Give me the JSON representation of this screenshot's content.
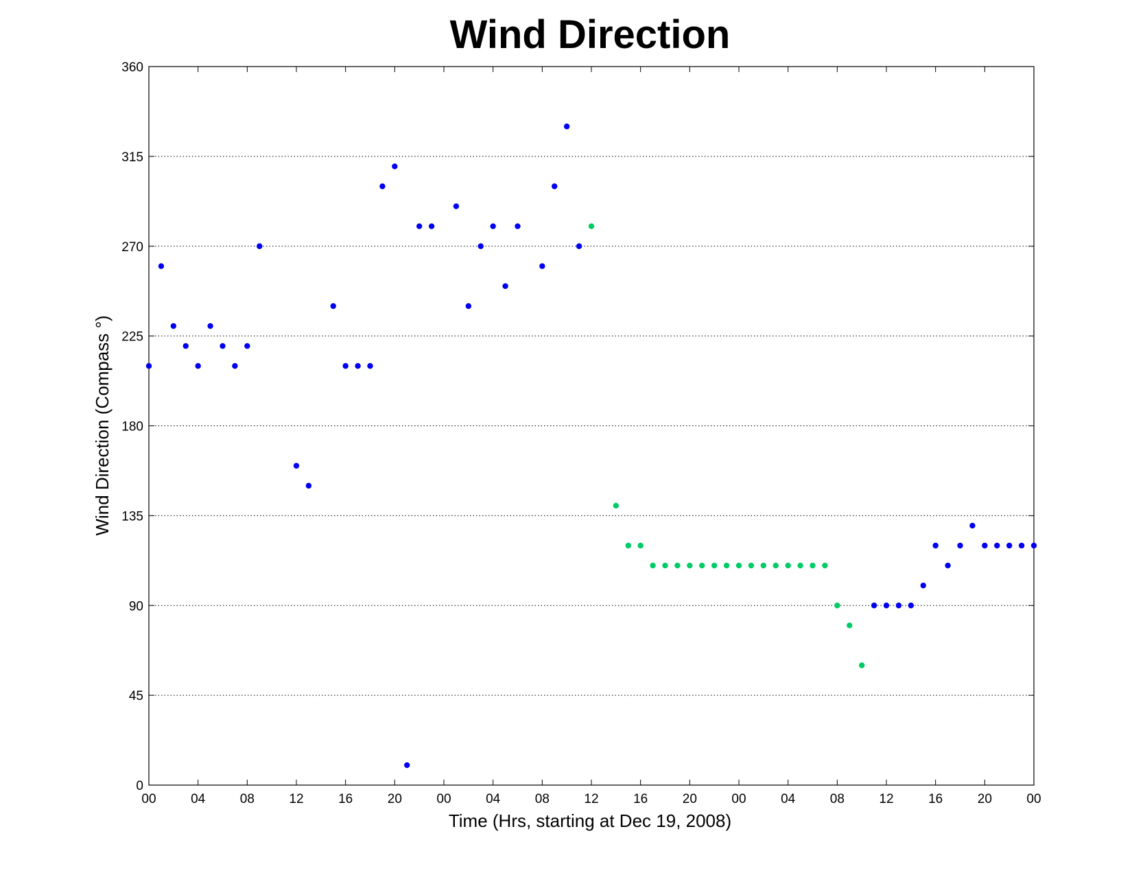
{
  "chart_data": {
    "type": "scatter",
    "title": "Wind Direction",
    "xlabel": "Time (Hrs, starting at Dec 19, 2008)",
    "ylabel": "Wind Direction (Compass  °)",
    "ylim": [
      0,
      360
    ],
    "xlim": [
      "2008-12-19 00:00",
      "2008-12-22 00:00"
    ],
    "yticks": [
      0,
      45,
      90,
      135,
      180,
      225,
      270,
      315,
      360
    ],
    "xticks": [
      {
        "time": "2008-12-19 00:00",
        "label": "00"
      },
      {
        "time": "2008-12-19 04:00",
        "label": "04"
      },
      {
        "time": "2008-12-19 08:00",
        "label": "08"
      },
      {
        "time": "2008-12-19 12:00",
        "label": "12"
      },
      {
        "time": "2008-12-19 16:00",
        "label": "16"
      },
      {
        "time": "2008-12-19 20:00",
        "label": "20"
      },
      {
        "time": "2008-12-20 00:00",
        "label": "00"
      },
      {
        "time": "2008-12-20 04:00",
        "label": "04"
      },
      {
        "time": "2008-12-20 08:00",
        "label": "08"
      },
      {
        "time": "2008-12-20 12:00",
        "label": "12"
      },
      {
        "time": "2008-12-20 16:00",
        "label": "16"
      },
      {
        "time": "2008-12-20 20:00",
        "label": "20"
      },
      {
        "time": "2008-12-21 00:00",
        "label": "00"
      },
      {
        "time": "2008-12-21 04:00",
        "label": "04"
      },
      {
        "time": "2008-12-21 08:00",
        "label": "08"
      },
      {
        "time": "2008-12-21 12:00",
        "label": "12"
      },
      {
        "time": "2008-12-21 16:00",
        "label": "16"
      },
      {
        "time": "2008-12-21 20:00",
        "label": "20"
      },
      {
        "time": "2008-12-22 00:00",
        "label": "00"
      }
    ],
    "grid": "horizontal",
    "series": [
      {
        "color": "#0000ee",
        "points": [
          [
            "2008-12-19 00:00",
            210
          ],
          [
            "2008-12-19 01:00",
            260
          ],
          [
            "2008-12-19 02:00",
            230
          ],
          [
            "2008-12-19 03:00",
            220
          ],
          [
            "2008-12-19 04:00",
            210
          ],
          [
            "2008-12-19 05:00",
            230
          ],
          [
            "2008-12-19 06:00",
            220
          ],
          [
            "2008-12-19 07:00",
            210
          ],
          [
            "2008-12-19 08:00",
            220
          ],
          [
            "2008-12-19 09:00",
            270
          ],
          [
            "2008-12-19 12:00",
            160
          ],
          [
            "2008-12-19 13:00",
            150
          ],
          [
            "2008-12-19 15:00",
            240
          ],
          [
            "2008-12-19 16:00",
            210
          ],
          [
            "2008-12-19 17:00",
            210
          ],
          [
            "2008-12-19 18:00",
            210
          ],
          [
            "2008-12-19 19:00",
            300
          ],
          [
            "2008-12-19 20:00",
            310
          ],
          [
            "2008-12-19 21:00",
            10
          ],
          [
            "2008-12-19 22:00",
            280
          ],
          [
            "2008-12-19 23:00",
            280
          ],
          [
            "2008-12-20 01:00",
            290
          ],
          [
            "2008-12-20 02:00",
            240
          ],
          [
            "2008-12-20 03:00",
            270
          ],
          [
            "2008-12-20 04:00",
            280
          ],
          [
            "2008-12-20 05:00",
            250
          ],
          [
            "2008-12-20 06:00",
            280
          ],
          [
            "2008-12-20 08:00",
            260
          ],
          [
            "2008-12-20 09:00",
            300
          ],
          [
            "2008-12-20 10:00",
            330
          ],
          [
            "2008-12-20 11:00",
            270
          ],
          [
            "2008-12-21 11:00",
            90
          ],
          [
            "2008-12-21 12:00",
            90
          ],
          [
            "2008-12-21 13:00",
            90
          ],
          [
            "2008-12-21 14:00",
            90
          ],
          [
            "2008-12-21 15:00",
            100
          ],
          [
            "2008-12-21 16:00",
            120
          ],
          [
            "2008-12-21 17:00",
            110
          ],
          [
            "2008-12-21 18:00",
            120
          ],
          [
            "2008-12-21 19:00",
            130
          ],
          [
            "2008-12-21 20:00",
            120
          ],
          [
            "2008-12-21 21:00",
            120
          ],
          [
            "2008-12-21 22:00",
            120
          ],
          [
            "2008-12-21 23:00",
            120
          ],
          [
            "2008-12-22 00:00",
            120
          ]
        ]
      },
      {
        "color": "#00cc66",
        "points": [
          [
            "2008-12-20 12:00",
            280
          ],
          [
            "2008-12-20 14:00",
            140
          ],
          [
            "2008-12-20 15:00",
            120
          ],
          [
            "2008-12-20 16:00",
            120
          ],
          [
            "2008-12-20 17:00",
            110
          ],
          [
            "2008-12-20 18:00",
            110
          ],
          [
            "2008-12-20 19:00",
            110
          ],
          [
            "2008-12-20 20:00",
            110
          ],
          [
            "2008-12-20 21:00",
            110
          ],
          [
            "2008-12-20 22:00",
            110
          ],
          [
            "2008-12-20 23:00",
            110
          ],
          [
            "2008-12-21 00:00",
            110
          ],
          [
            "2008-12-21 01:00",
            110
          ],
          [
            "2008-12-21 02:00",
            110
          ],
          [
            "2008-12-21 03:00",
            110
          ],
          [
            "2008-12-21 04:00",
            110
          ],
          [
            "2008-12-21 05:00",
            110
          ],
          [
            "2008-12-21 06:00",
            110
          ],
          [
            "2008-12-21 07:00",
            110
          ],
          [
            "2008-12-21 08:00",
            90
          ],
          [
            "2008-12-21 09:00",
            80
          ],
          [
            "2008-12-21 10:00",
            60
          ]
        ]
      }
    ]
  }
}
